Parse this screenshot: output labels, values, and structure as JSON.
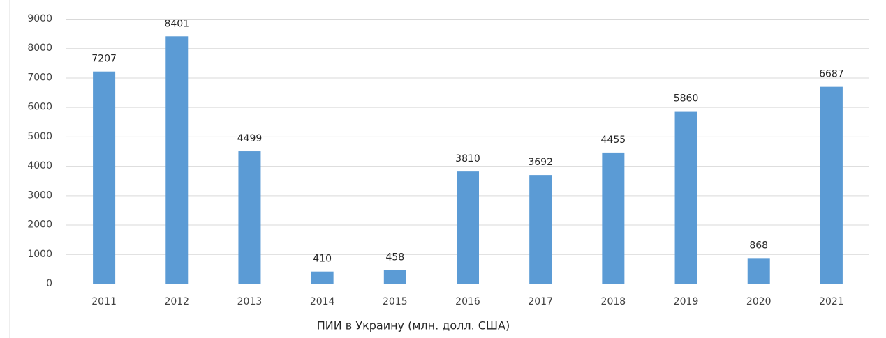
{
  "chart_data": {
    "type": "bar",
    "x_label": "ПИИ в Украину (млн. долл. США)",
    "categories": [
      "2011",
      "2012",
      "2013",
      "2014",
      "2015",
      "2016",
      "2017",
      "2018",
      "2019",
      "2020",
      "2021"
    ],
    "values": [
      7207,
      8401,
      4499,
      410,
      458,
      3810,
      3692,
      4455,
      5860,
      868,
      6687
    ],
    "color": "#5b9bd5",
    "ylim": [
      0,
      9000
    ],
    "yticks": [
      0,
      1000,
      2000,
      3000,
      4000,
      5000,
      6000,
      7000,
      8000,
      9000
    ],
    "grid": true
  }
}
